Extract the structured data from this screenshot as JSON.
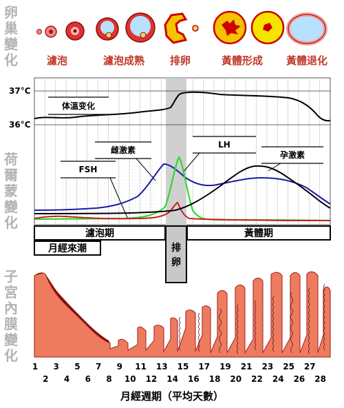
{
  "side_labels": {
    "ovary": [
      "卵",
      "巢",
      "變",
      "化"
    ],
    "hormone": [
      "荷",
      "爾",
      "蒙",
      "變",
      "化"
    ],
    "endometrium": [
      "子",
      "宮",
      "內",
      "膜",
      "變",
      "化"
    ]
  },
  "ovary_stages": [
    "濾泡",
    "濾泡成熟",
    "排卵",
    "黃體形成",
    "黃體退化"
  ],
  "temperature": {
    "high": "37°C",
    "low": "36°C",
    "label": "体溫变化"
  },
  "hormones": {
    "estrogen": "雌激素",
    "fsh": "FSH",
    "lh": "LH",
    "progesterone": "孕激素"
  },
  "phases": {
    "follicular": "濾泡期",
    "menstruation": "月經來潮",
    "ovulation": "排卵",
    "luteal": "黃體期"
  },
  "days_top": [
    "1",
    "3",
    "5",
    "7",
    "9",
    "11",
    "13",
    "15",
    "17",
    "19",
    "21",
    "23",
    "25",
    "27"
  ],
  "days_bottom": [
    "2",
    "4",
    "6",
    "8",
    "10",
    "12",
    "14",
    "16",
    "18",
    "20",
    "22",
    "24",
    "26",
    "28"
  ],
  "xlabel": "月經週期（平均天數）",
  "colors": {
    "temp": "#000000",
    "estrogen": "#1a1aa8",
    "lh": "#33d633",
    "fsh": "#c8211e",
    "progesterone": "#000000",
    "endometrium": "#ef7b5e",
    "ovulation_band": "#c8c8c8"
  }
}
